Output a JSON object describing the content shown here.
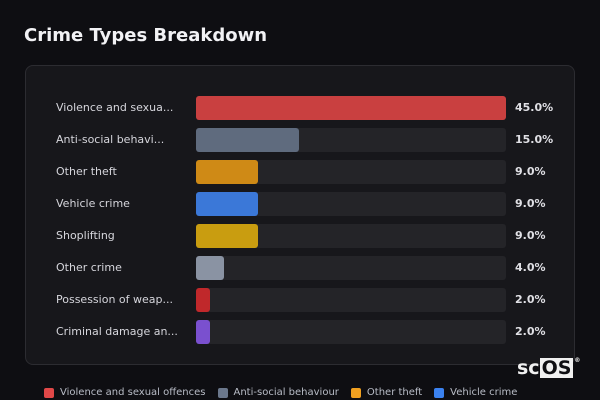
{
  "title": "Crime Types Breakdown",
  "chart_data": {
    "type": "bar",
    "orientation": "horizontal",
    "title": "Crime Types Breakdown",
    "categories": [
      "Violence and sexua...",
      "Anti-social behavi...",
      "Other theft",
      "Vehicle crime",
      "Shoplifting",
      "Other crime",
      "Possession of weap...",
      "Criminal damage an..."
    ],
    "values": [
      45.0,
      15.0,
      9.0,
      9.0,
      9.0,
      4.0,
      2.0,
      2.0
    ],
    "value_labels": [
      "45.0%",
      "15.0%",
      "9.0%",
      "9.0%",
      "9.0%",
      "4.0%",
      "2.0%",
      "2.0%"
    ],
    "colors": [
      "#c94040",
      "#5f6b7e",
      "#cf8a16",
      "#3b78d8",
      "#c99d10",
      "#8a93a3",
      "#c0282b",
      "#7a50cf"
    ],
    "xlim": [
      0,
      45
    ],
    "unit": "%",
    "legend_position": "bottom",
    "legend": [
      {
        "label": "Violence and sexual offences",
        "color": "#e04848"
      },
      {
        "label": "Anti-social behaviour",
        "color": "#6b788c"
      },
      {
        "label": "Other theft",
        "color": "#f0a020"
      },
      {
        "label": "Vehicle crime",
        "color": "#3b82f0"
      }
    ]
  },
  "logo": {
    "text_a": "sc",
    "text_b": "OS",
    "reg": "®"
  }
}
